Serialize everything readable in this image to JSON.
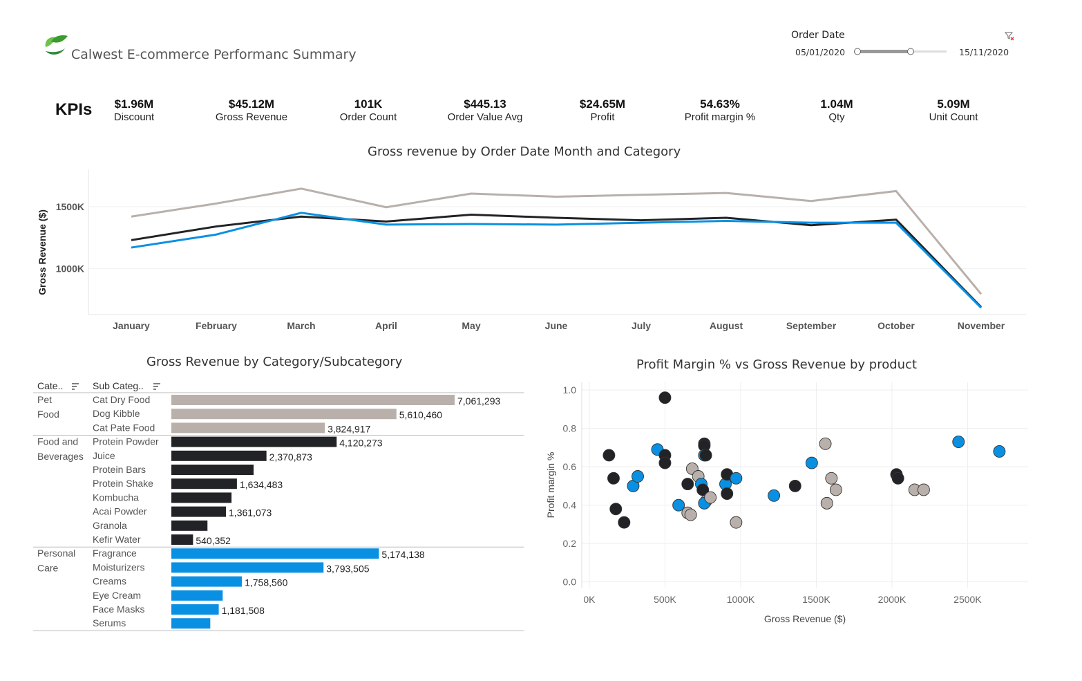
{
  "header": {
    "title": "Calwest E-commerce Performanc Summary",
    "filter": {
      "label": "Order Date",
      "start": "05/01/2020",
      "end": "15/11/2020",
      "icon": "filter-clear-icon"
    }
  },
  "kpis": {
    "title": "KPIs",
    "items": [
      {
        "value": "$1.96M",
        "label": "Discount"
      },
      {
        "value": "$45.12M",
        "label": "Gross Revenue"
      },
      {
        "value": "101K",
        "label": "Order Count"
      },
      {
        "value": "$445.13",
        "label": "Order Value Avg"
      },
      {
        "value": "$24.65M",
        "label": "Profit"
      },
      {
        "value": "54.63%",
        "label": "Profit margin %"
      },
      {
        "value": "1.04M",
        "label": "Qty"
      },
      {
        "value": "5.09M",
        "label": "Unit Count"
      }
    ]
  },
  "colors": {
    "pet_food": "#b9b0ab",
    "food_beverages": "#222326",
    "personal_care": "#0a90e2"
  },
  "chart_data": [
    {
      "type": "line",
      "title": "Gross revenue by Order Date Month and Category",
      "ylabel": "Gross Revenue ($)",
      "xlabel": "",
      "categories": [
        "January",
        "February",
        "March",
        "April",
        "May",
        "June",
        "July",
        "August",
        "September",
        "October",
        "November"
      ],
      "ylim": [
        630000,
        1800000
      ],
      "yticks": [
        {
          "value": 1000000,
          "label": "1000K"
        },
        {
          "value": 1500000,
          "label": "1500K"
        }
      ],
      "grid": true,
      "series": [
        {
          "key": "pet_food",
          "values": [
            1420000,
            1525000,
            1645000,
            1495000,
            1605000,
            1580000,
            1595000,
            1610000,
            1545000,
            1625000,
            795000
          ]
        },
        {
          "key": "food_beverages",
          "values": [
            1230000,
            1340000,
            1420000,
            1380000,
            1435000,
            1410000,
            1390000,
            1410000,
            1350000,
            1395000,
            690000
          ]
        },
        {
          "key": "personal_care",
          "values": [
            1170000,
            1275000,
            1450000,
            1355000,
            1360000,
            1355000,
            1370000,
            1385000,
            1370000,
            1370000,
            685000
          ]
        }
      ]
    },
    {
      "type": "bar",
      "title": "Gross Revenue by Category/Subcategory",
      "columns": [
        "Cate..",
        "Sub Categ.."
      ],
      "groups": [
        {
          "key": "pet_food",
          "name": "Pet Food",
          "items": [
            {
              "name": "Cat Dry Food",
              "value": 7061293,
              "label": "7,061,293"
            },
            {
              "name": "Dog Kibble",
              "value": 5610460,
              "label": "5,610,460"
            },
            {
              "name": "Cat Pate Food",
              "value": 3824917,
              "label": "3,824,917"
            }
          ]
        },
        {
          "key": "food_beverages",
          "name": "Food and Beverages",
          "items": [
            {
              "name": "Protein Powder",
              "value": 4120273,
              "label": "4,120,273"
            },
            {
              "name": "Juice",
              "value": 2370873,
              "label": "2,370,873"
            },
            {
              "name": "Protein Bars",
              "value": 2050000,
              "label": ""
            },
            {
              "name": "Protein Shake",
              "value": 1634483,
              "label": "1,634,483"
            },
            {
              "name": "Kombucha",
              "value": 1500000,
              "label": ""
            },
            {
              "name": "Acai Powder",
              "value": 1361073,
              "label": "1,361,073"
            },
            {
              "name": "Granola",
              "value": 900000,
              "label": ""
            },
            {
              "name": "Kefir Water",
              "value": 540352,
              "label": "540,352"
            }
          ]
        },
        {
          "key": "personal_care",
          "name": "Personal Care",
          "items": [
            {
              "name": "Fragrance",
              "value": 5174138,
              "label": "5,174,138"
            },
            {
              "name": "Moisturizers",
              "value": 3793505,
              "label": "3,793,505"
            },
            {
              "name": "Creams",
              "value": 1758560,
              "label": "1,758,560"
            },
            {
              "name": "Eye Cream",
              "value": 1280000,
              "label": ""
            },
            {
              "name": "Face Masks",
              "value": 1181508,
              "label": "1,181,508"
            },
            {
              "name": "Serums",
              "value": 970000,
              "label": ""
            }
          ]
        }
      ]
    },
    {
      "type": "scatter",
      "title": "Profit Margin % vs Gross Revenue by product",
      "xlabel": "Gross Revenue ($)",
      "ylabel": "Profit margin %",
      "xlim": [
        -50000,
        2900000
      ],
      "ylim": [
        -0.03,
        1.04
      ],
      "xticks": [
        {
          "value": 0,
          "label": "0K"
        },
        {
          "value": 500000,
          "label": "500K"
        },
        {
          "value": 1000000,
          "label": "1000K"
        },
        {
          "value": 1500000,
          "label": "1500K"
        },
        {
          "value": 2000000,
          "label": "2000K"
        },
        {
          "value": 2500000,
          "label": "2500K"
        }
      ],
      "yticks": [
        {
          "value": 0,
          "label": "0.0"
        },
        {
          "value": 0.2,
          "label": "0.2"
        },
        {
          "value": 0.4,
          "label": "0.4"
        },
        {
          "value": 0.6,
          "label": "0.6"
        },
        {
          "value": 0.8,
          "label": "0.8"
        },
        {
          "value": 1.0,
          "label": "1.0"
        }
      ],
      "grid": true,
      "points": [
        {
          "key": "food_beverages",
          "x": 130000,
          "y": 0.66
        },
        {
          "key": "food_beverages",
          "x": 160000,
          "y": 0.54
        },
        {
          "key": "food_beverages",
          "x": 175000,
          "y": 0.38
        },
        {
          "key": "food_beverages",
          "x": 230000,
          "y": 0.31
        },
        {
          "key": "personal_care",
          "x": 290000,
          "y": 0.5
        },
        {
          "key": "personal_care",
          "x": 320000,
          "y": 0.55
        },
        {
          "key": "personal_care",
          "x": 450000,
          "y": 0.69
        },
        {
          "key": "food_beverages",
          "x": 500000,
          "y": 0.96
        },
        {
          "key": "food_beverages",
          "x": 500000,
          "y": 0.66
        },
        {
          "key": "food_beverages",
          "x": 500000,
          "y": 0.62
        },
        {
          "key": "personal_care",
          "x": 590000,
          "y": 0.4
        },
        {
          "key": "pet_food",
          "x": 650000,
          "y": 0.36
        },
        {
          "key": "pet_food",
          "x": 670000,
          "y": 0.35
        },
        {
          "key": "pet_food",
          "x": 680000,
          "y": 0.59
        },
        {
          "key": "food_beverages",
          "x": 650000,
          "y": 0.51
        },
        {
          "key": "pet_food",
          "x": 720000,
          "y": 0.55
        },
        {
          "key": "personal_care",
          "x": 740000,
          "y": 0.51
        },
        {
          "key": "food_beverages",
          "x": 750000,
          "y": 0.48
        },
        {
          "key": "food_beverages",
          "x": 760000,
          "y": 0.72
        },
        {
          "key": "food_beverages",
          "x": 760000,
          "y": 0.71
        },
        {
          "key": "personal_care",
          "x": 760000,
          "y": 0.66
        },
        {
          "key": "food_beverages",
          "x": 770000,
          "y": 0.66
        },
        {
          "key": "pet_food",
          "x": 770000,
          "y": 0.42
        },
        {
          "key": "personal_care",
          "x": 760000,
          "y": 0.41
        },
        {
          "key": "pet_food",
          "x": 800000,
          "y": 0.44
        },
        {
          "key": "personal_care",
          "x": 900000,
          "y": 0.51
        },
        {
          "key": "food_beverages",
          "x": 910000,
          "y": 0.56
        },
        {
          "key": "food_beverages",
          "x": 910000,
          "y": 0.46
        },
        {
          "key": "personal_care",
          "x": 970000,
          "y": 0.54
        },
        {
          "key": "pet_food",
          "x": 970000,
          "y": 0.31
        },
        {
          "key": "personal_care",
          "x": 1220000,
          "y": 0.45
        },
        {
          "key": "food_beverages",
          "x": 1360000,
          "y": 0.5
        },
        {
          "key": "personal_care",
          "x": 1470000,
          "y": 0.62
        },
        {
          "key": "pet_food",
          "x": 1560000,
          "y": 0.72
        },
        {
          "key": "pet_food",
          "x": 1570000,
          "y": 0.41
        },
        {
          "key": "pet_food",
          "x": 1600000,
          "y": 0.54
        },
        {
          "key": "pet_food",
          "x": 1630000,
          "y": 0.48
        },
        {
          "key": "food_beverages",
          "x": 2030000,
          "y": 0.56
        },
        {
          "key": "food_beverages",
          "x": 2040000,
          "y": 0.54
        },
        {
          "key": "pet_food",
          "x": 2150000,
          "y": 0.48
        },
        {
          "key": "pet_food",
          "x": 2210000,
          "y": 0.48
        },
        {
          "key": "personal_care",
          "x": 2440000,
          "y": 0.73
        },
        {
          "key": "personal_care",
          "x": 2710000,
          "y": 0.68
        }
      ]
    }
  ]
}
